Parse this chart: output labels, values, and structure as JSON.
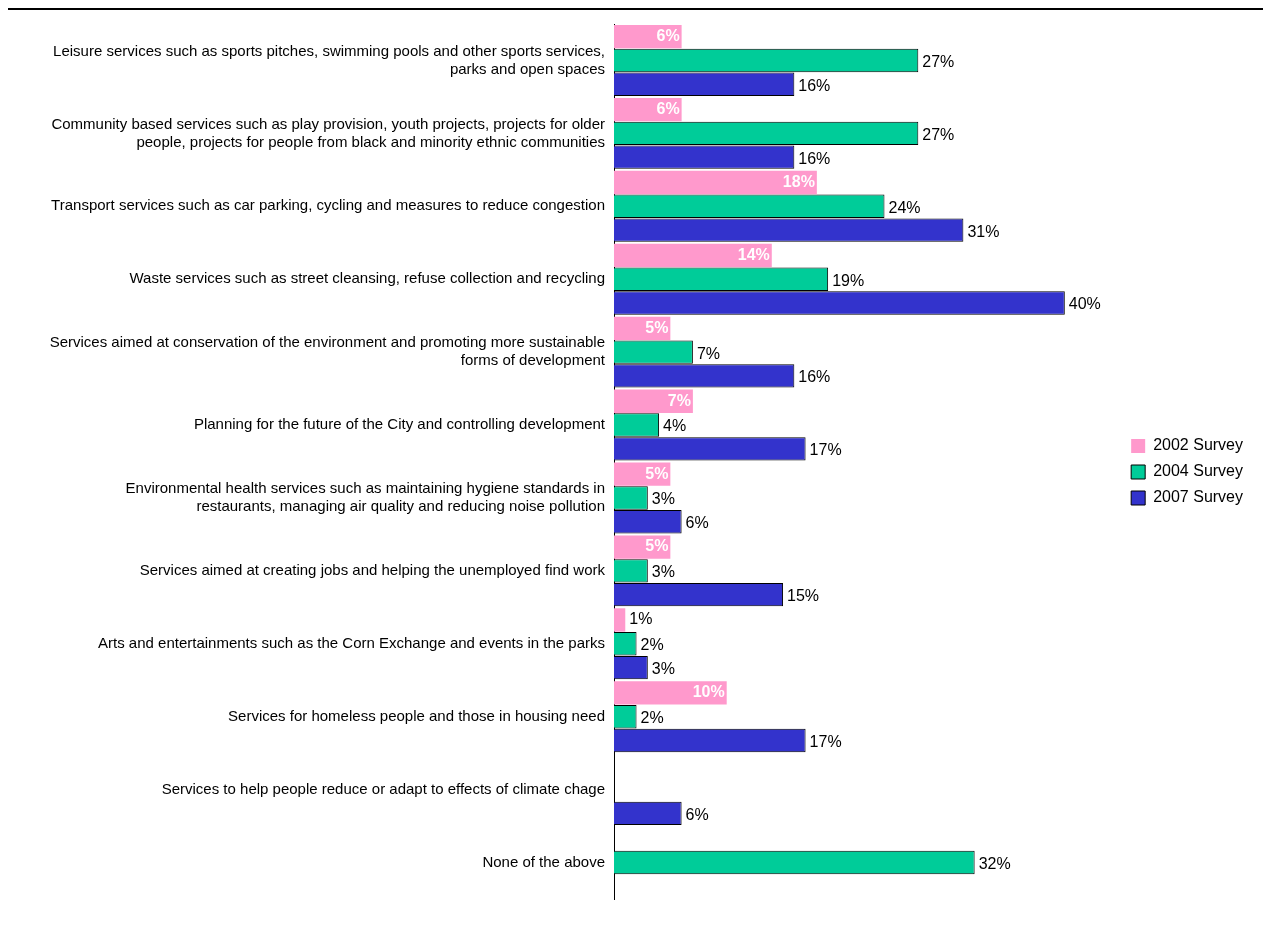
{
  "chart_data": {
    "type": "bar",
    "orientation": "horizontal",
    "categories": [
      "Leisure services such as sports pitches, swimming pools and other sports services, parks and open spaces",
      "Community based services such as play provision, youth projects, projects for older people, projects for people from black and minority ethnic communities",
      "Transport services such as car parking, cycling and measures to reduce congestion",
      "Waste services such as street cleansing, refuse collection and recycling",
      "Services aimed at conservation of the environment and promoting more sustainable forms of development",
      "Planning for the future of the City and controlling development",
      "Environmental health services such as maintaining hygiene standards in restaurants, managing air quality and reducing noise pollution",
      "Services aimed at creating jobs and helping the unemployed find work",
      "Arts and entertainments such as the Corn Exchange and events in the parks",
      "Services for homeless people and those in housing need",
      "Services to help people reduce or adapt to effects of climate chage",
      "None of the above"
    ],
    "series": [
      {
        "name": "2002 Survey",
        "color": "#ff99cc",
        "values": [
          6,
          6,
          18,
          14,
          5,
          7,
          5,
          5,
          1,
          10,
          null,
          null
        ],
        "value_labels": [
          "6%",
          "6%",
          "18%",
          "14%",
          "5%",
          "7%",
          "5%",
          "5%",
          "1%",
          "10%",
          null,
          null
        ]
      },
      {
        "name": "2004 Survey",
        "color": "#00cc99",
        "values": [
          27,
          27,
          24,
          19,
          7,
          4,
          3,
          3,
          2,
          2,
          null,
          32
        ],
        "value_labels": [
          "27%",
          "27%",
          "24%",
          "19%",
          "7%",
          "4%",
          "3%",
          "3%",
          "2%",
          "2%",
          null,
          "32%"
        ]
      },
      {
        "name": "2007 Survey",
        "color": "#3333cc",
        "values": [
          16,
          16,
          31,
          40,
          16,
          17,
          6,
          15,
          3,
          17,
          6,
          null
        ],
        "value_labels": [
          "16%",
          "16%",
          "31%",
          "40%",
          "16%",
          "17%",
          "6%",
          "15%",
          "3%",
          "17%",
          "6%",
          null
        ]
      }
    ],
    "tick_labels": "y",
    "grid": false,
    "legend": "right"
  }
}
